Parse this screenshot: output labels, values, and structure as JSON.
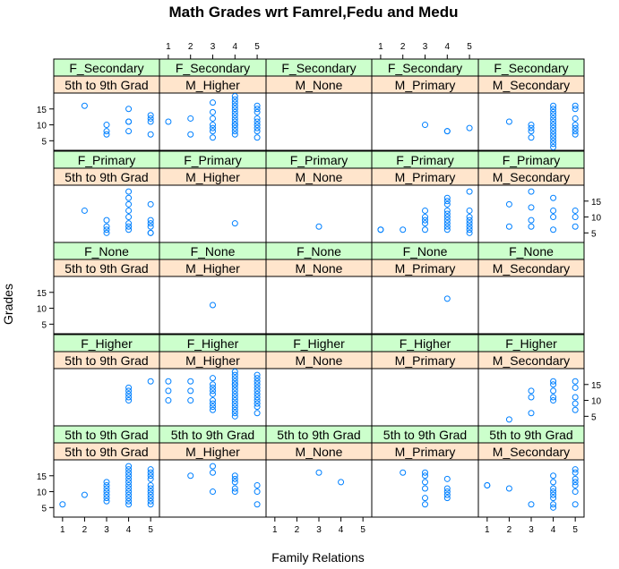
{
  "chart_data": {
    "type": "scatter",
    "title": "Math Grades wrt Famrel,Fedu and Medu",
    "xlabel": "Family Relations",
    "ylabel": "Grades",
    "xlim": [
      0.6,
      5.4
    ],
    "ylim": [
      2,
      20
    ],
    "x_ticks": [
      1,
      2,
      3,
      4,
      5
    ],
    "y_ticks": [
      5,
      10,
      15
    ],
    "marker_color": "#0080ff",
    "strip_outer_color": "#ccffcc",
    "strip_inner_color": "#ffe5cc",
    "columns": [
      "5th to 9th Grad",
      "M_Higher",
      "M_None",
      "M_Primary",
      "M_Secondary"
    ],
    "rows": [
      "F_Secondary",
      "F_Primary",
      "F_None",
      "F_Higher",
      "5th to 9th Grad"
    ],
    "panels": [
      {
        "row": "F_Secondary",
        "col": "5th to 9th Grad",
        "x": [
          2,
          3,
          3,
          3,
          4,
          4,
          4,
          4,
          5,
          5,
          5,
          5
        ],
        "y": [
          16,
          7,
          8,
          10,
          8,
          11,
          11,
          15,
          7,
          11,
          12,
          13
        ]
      },
      {
        "row": "F_Secondary",
        "col": "M_Higher",
        "x": [
          1,
          2,
          2,
          3,
          3,
          3,
          3,
          3,
          3,
          3,
          4,
          4,
          4,
          4,
          4,
          4,
          4,
          4,
          4,
          4,
          4,
          4,
          4,
          4,
          5,
          5,
          5,
          5,
          5,
          5,
          5,
          5,
          5
        ],
        "y": [
          11,
          7,
          12,
          6,
          8,
          9,
          10,
          12,
          14,
          17,
          7,
          8,
          9,
          10,
          11,
          12,
          13,
          14,
          15,
          16,
          17,
          19,
          18,
          10,
          6,
          8,
          10,
          12,
          14,
          15,
          16,
          9,
          11
        ]
      },
      {
        "row": "F_Secondary",
        "col": "M_None",
        "x": [],
        "y": []
      },
      {
        "row": "F_Secondary",
        "col": "M_Primary",
        "x": [
          3,
          4,
          4,
          5
        ],
        "y": [
          10,
          8,
          8,
          9
        ]
      },
      {
        "row": "F_Secondary",
        "col": "M_Secondary",
        "x": [
          2,
          3,
          3,
          3,
          3,
          4,
          4,
          4,
          4,
          4,
          4,
          4,
          4,
          4,
          4,
          4,
          4,
          4,
          4,
          5,
          5,
          5,
          5,
          5,
          5,
          5
        ],
        "y": [
          11,
          6,
          8,
          9,
          10,
          3,
          5,
          6,
          7,
          8,
          9,
          10,
          11,
          12,
          13,
          14,
          15,
          16,
          4,
          8,
          9,
          10,
          12,
          15,
          16,
          7
        ]
      },
      {
        "row": "F_Primary",
        "col": "5th to 9th Grad",
        "x": [
          2,
          3,
          3,
          3,
          3,
          4,
          4,
          4,
          4,
          4,
          4,
          4,
          4,
          5,
          5,
          5,
          5,
          5,
          5
        ],
        "y": [
          12,
          5,
          6,
          7,
          9,
          6,
          7,
          8,
          10,
          12,
          14,
          16,
          18,
          5,
          5,
          7,
          8,
          9,
          14
        ]
      },
      {
        "row": "F_Primary",
        "col": "M_Higher",
        "x": [
          4
        ],
        "y": [
          8
        ]
      },
      {
        "row": "F_Primary",
        "col": "M_None",
        "x": [
          3
        ],
        "y": [
          7
        ]
      },
      {
        "row": "F_Primary",
        "col": "M_Primary",
        "x": [
          1,
          1,
          2,
          3,
          3,
          3,
          3,
          3,
          4,
          4,
          4,
          4,
          4,
          4,
          4,
          4,
          4,
          4,
          5,
          5,
          5,
          5,
          5,
          5,
          5,
          5
        ],
        "y": [
          6,
          6,
          6,
          6,
          8,
          9,
          10,
          12,
          6,
          7,
          8,
          9,
          10,
          11,
          12,
          14,
          15,
          16,
          5,
          6,
          7,
          8,
          9,
          10,
          12,
          18
        ]
      },
      {
        "row": "F_Primary",
        "col": "M_Secondary",
        "x": [
          2,
          2,
          3,
          3,
          3,
          3,
          4,
          4,
          4,
          4,
          5,
          5,
          5
        ],
        "y": [
          7,
          14,
          7,
          9,
          13,
          18,
          6,
          10,
          12,
          16,
          7,
          10,
          12
        ]
      },
      {
        "row": "F_None",
        "col": "5th to 9th Grad",
        "x": [],
        "y": []
      },
      {
        "row": "F_None",
        "col": "M_Higher",
        "x": [
          3
        ],
        "y": [
          11
        ]
      },
      {
        "row": "F_None",
        "col": "M_None",
        "x": [],
        "y": []
      },
      {
        "row": "F_None",
        "col": "M_Primary",
        "x": [
          4
        ],
        "y": [
          13
        ]
      },
      {
        "row": "F_None",
        "col": "M_Secondary",
        "x": [],
        "y": []
      },
      {
        "row": "F_Higher",
        "col": "5th to 9th Grad",
        "x": [
          4,
          4,
          4,
          4,
          4,
          5
        ],
        "y": [
          10,
          11,
          12,
          13,
          14,
          16
        ]
      },
      {
        "row": "F_Higher",
        "col": "M_Higher",
        "x": [
          1,
          1,
          1,
          2,
          2,
          2,
          3,
          3,
          3,
          3,
          3,
          3,
          3,
          3,
          3,
          4,
          4,
          4,
          4,
          4,
          4,
          4,
          4,
          4,
          4,
          4,
          4,
          4,
          4,
          4,
          4,
          5,
          5,
          5,
          5,
          5,
          5,
          5,
          5,
          5,
          5,
          5,
          5
        ],
        "y": [
          10,
          13,
          16,
          10,
          13,
          16,
          7,
          8,
          9,
          10,
          12,
          13,
          14,
          15,
          17,
          5,
          6,
          7,
          8,
          9,
          10,
          11,
          12,
          13,
          14,
          15,
          16,
          17,
          18,
          19,
          15,
          6,
          8,
          9,
          10,
          11,
          12,
          13,
          14,
          15,
          16,
          17,
          18
        ]
      },
      {
        "row": "F_Higher",
        "col": "M_None",
        "x": [],
        "y": []
      },
      {
        "row": "F_Higher",
        "col": "M_Primary",
        "x": [],
        "y": []
      },
      {
        "row": "F_Higher",
        "col": "M_Secondary",
        "x": [
          2,
          3,
          3,
          3,
          4,
          4,
          4,
          4,
          4,
          5,
          5,
          5,
          5,
          5
        ],
        "y": [
          4,
          6,
          11,
          13,
          10,
          11,
          13,
          15,
          16,
          7,
          9,
          11,
          14,
          16
        ]
      },
      {
        "row": "5th to 9th Grad",
        "col": "5th to 9th Grad",
        "x": [
          1,
          2,
          3,
          3,
          3,
          3,
          3,
          3,
          3,
          4,
          4,
          4,
          4,
          4,
          4,
          4,
          4,
          4,
          4,
          4,
          4,
          4,
          5,
          5,
          5,
          5,
          5,
          5,
          5,
          5,
          5,
          5,
          5
        ],
        "y": [
          6,
          9,
          8,
          9,
          10,
          11,
          12,
          13,
          7,
          6,
          7,
          8,
          9,
          10,
          11,
          12,
          13,
          14,
          15,
          16,
          17,
          18,
          6,
          7,
          8,
          9,
          10,
          11,
          12,
          14,
          15,
          16,
          17
        ]
      },
      {
        "row": "5th to 9th Grad",
        "col": "M_Higher",
        "x": [
          2,
          3,
          3,
          3,
          4,
          4,
          4,
          4,
          4,
          5,
          5,
          5
        ],
        "y": [
          15,
          10,
          16,
          18,
          10,
          11,
          13,
          14,
          15,
          6,
          10,
          12
        ]
      },
      {
        "row": "5th to 9th Grad",
        "col": "M_None",
        "x": [
          3,
          4
        ],
        "y": [
          16,
          13
        ]
      },
      {
        "row": "5th to 9th Grad",
        "col": "M_Primary",
        "x": [
          2,
          3,
          3,
          3,
          3,
          3,
          3,
          4,
          4,
          4,
          4,
          4
        ],
        "y": [
          16,
          6,
          8,
          11,
          13,
          15,
          16,
          8,
          9,
          10,
          11,
          14
        ]
      },
      {
        "row": "5th to 9th Grad",
        "col": "M_Secondary",
        "x": [
          1,
          1,
          2,
          3,
          4,
          4,
          4,
          4,
          4,
          4,
          4,
          4,
          5,
          5,
          5,
          5,
          5,
          5,
          5
        ],
        "y": [
          12,
          12,
          11,
          6,
          5,
          6,
          8,
          9,
          10,
          11,
          13,
          15,
          6,
          10,
          12,
          13,
          14,
          16,
          17
        ]
      }
    ]
  }
}
